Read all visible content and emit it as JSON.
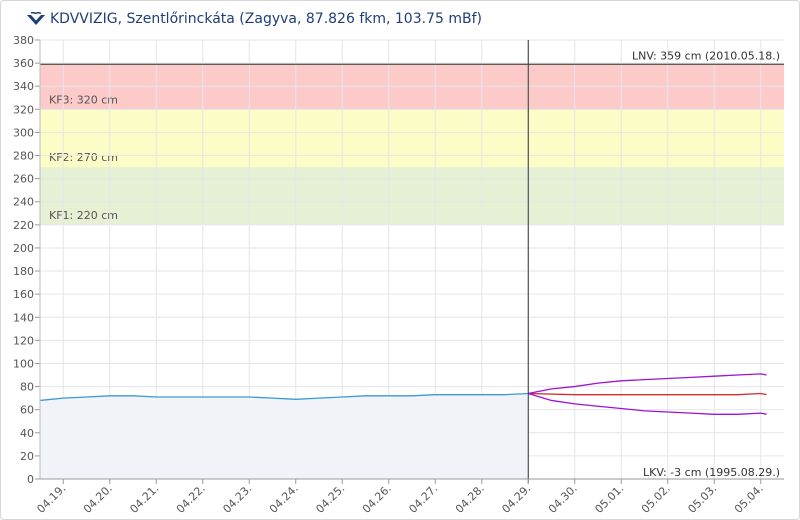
{
  "header": {
    "title": "KDVVIZIG, Szentlőrinckáta (Zagyva, 87.826 fkm, 103.75 mBf)",
    "logo_icon": "kdvvizig-logo-icon"
  },
  "chart_data": {
    "type": "line",
    "title": "KDVVIZIG, Szentlőrinckáta (Zagyva, 87.826 fkm, 103.75 mBf)",
    "xlabel": "",
    "ylabel": "",
    "x_range": [
      "04.18.12:00",
      "05.04.12:00"
    ],
    "ylim": [
      0,
      380
    ],
    "y_ticks": [
      0,
      20,
      40,
      60,
      80,
      100,
      120,
      140,
      160,
      180,
      200,
      220,
      240,
      260,
      280,
      300,
      320,
      340,
      360,
      380
    ],
    "x_tick_labels": [
      "04.19.",
      "04.20.",
      "04.21.",
      "04.22.",
      "04.23.",
      "04.24.",
      "04.25.",
      "04.26.",
      "04.27.",
      "04.28.",
      "04.29.",
      "04.30.",
      "05.01.",
      "05.02.",
      "05.03.",
      "05.04."
    ],
    "grid": true,
    "bands": [
      {
        "label": "KF1: 220 cm",
        "from": 220,
        "to": 270,
        "color": "#e5f0d4"
      },
      {
        "label": "KF2: 270 cm",
        "from": 270,
        "to": 320,
        "color": "#fcfcc7"
      },
      {
        "label": "KF3: 320 cm",
        "from": 320,
        "to": 360,
        "color": "#fdcaca"
      }
    ],
    "reference_lines": [
      {
        "label": "LNV: 359 cm (2010.05.18.)",
        "value": 359,
        "color": "#333333"
      },
      {
        "label": "LKV: -3 cm (1995.08.29.)",
        "value": -3,
        "color": "#333333"
      }
    ],
    "now_marker": "04.29.00:00",
    "series": [
      {
        "color": "#3d9bd3",
        "fill": "#f1f3f8",
        "points": [
          [
            "04.18.12:00",
            68
          ],
          [
            "04.19.00:00",
            70
          ],
          [
            "04.19.12:00",
            71
          ],
          [
            "04.20.00:00",
            72
          ],
          [
            "04.20.12:00",
            72
          ],
          [
            "04.21.00:00",
            71
          ],
          [
            "04.21.12:00",
            71
          ],
          [
            "04.22.00:00",
            71
          ],
          [
            "04.22.12:00",
            71
          ],
          [
            "04.23.00:00",
            71
          ],
          [
            "04.23.12:00",
            70
          ],
          [
            "04.24.00:00",
            69
          ],
          [
            "04.24.12:00",
            70
          ],
          [
            "04.25.00:00",
            71
          ],
          [
            "04.25.12:00",
            72
          ],
          [
            "04.26.00:00",
            72
          ],
          [
            "04.26.12:00",
            72
          ],
          [
            "04.27.00:00",
            73
          ],
          [
            "04.27.12:00",
            73
          ],
          [
            "04.28.00:00",
            73
          ],
          [
            "04.28.12:00",
            73
          ],
          [
            "04.29.00:00",
            74
          ]
        ]
      },
      {
        "color": "#d32b2b",
        "points": [
          [
            "04.29.00:00",
            74
          ],
          [
            "04.30.00:00",
            73
          ],
          [
            "05.01.00:00",
            73
          ],
          [
            "05.02.00:00",
            73
          ],
          [
            "05.03.00:00",
            73
          ],
          [
            "05.03.12:00",
            73
          ],
          [
            "05.04.00:00",
            74
          ],
          [
            "05.04.03:00",
            73
          ]
        ]
      },
      {
        "color": "#9b13d6",
        "points": [
          [
            "04.29.00:00",
            74
          ],
          [
            "04.29.12:00",
            78
          ],
          [
            "04.30.00:00",
            80
          ],
          [
            "04.30.12:00",
            83
          ],
          [
            "05.01.00:00",
            85
          ],
          [
            "05.01.12:00",
            86
          ],
          [
            "05.02.00:00",
            87
          ],
          [
            "05.02.12:00",
            88
          ],
          [
            "05.03.00:00",
            89
          ],
          [
            "05.03.12:00",
            90
          ],
          [
            "05.04.00:00",
            91
          ],
          [
            "05.04.03:00",
            90
          ]
        ]
      },
      {
        "color": "#9b13d6",
        "points": [
          [
            "04.29.00:00",
            74
          ],
          [
            "04.29.12:00",
            68
          ],
          [
            "04.30.00:00",
            65
          ],
          [
            "04.30.12:00",
            63
          ],
          [
            "05.01.00:00",
            61
          ],
          [
            "05.01.12:00",
            59
          ],
          [
            "05.02.00:00",
            58
          ],
          [
            "05.02.12:00",
            57
          ],
          [
            "05.03.00:00",
            56
          ],
          [
            "05.03.12:00",
            56
          ],
          [
            "05.04.00:00",
            57
          ],
          [
            "05.04.03:00",
            56
          ]
        ]
      }
    ]
  }
}
